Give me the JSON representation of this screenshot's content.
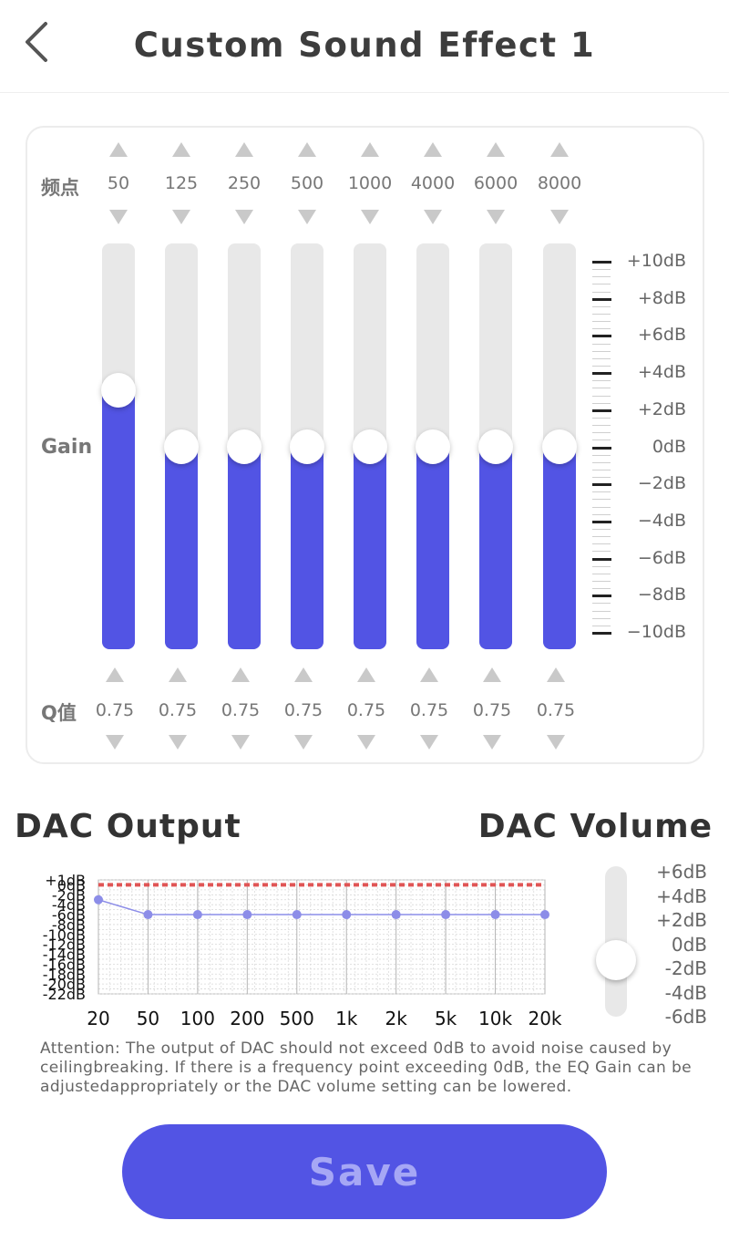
{
  "header": {
    "title": "Custom Sound Effect 1",
    "back_icon": "chevron-left-icon"
  },
  "eq": {
    "freq_label": "频点",
    "gain_label": "Gain",
    "q_label": "Q值",
    "bands": [
      {
        "freq": "50",
        "gain_db": 3,
        "q": "0.75"
      },
      {
        "freq": "125",
        "gain_db": 0,
        "q": "0.75"
      },
      {
        "freq": "250",
        "gain_db": 0,
        "q": "0.75"
      },
      {
        "freq": "500",
        "gain_db": 0,
        "q": "0.75"
      },
      {
        "freq": "1000",
        "gain_db": 0,
        "q": "0.75"
      },
      {
        "freq": "4000",
        "gain_db": 0,
        "q": "0.75"
      },
      {
        "freq": "6000",
        "gain_db": 0,
        "q": "0.75"
      },
      {
        "freq": "8000",
        "gain_db": 0,
        "q": "0.75"
      }
    ],
    "gain_range": [
      -10,
      10
    ],
    "scale_labels": [
      "+10dB",
      "+8dB",
      "+6dB",
      "+4dB",
      "+2dB",
      "0dB",
      "−2dB",
      "−4dB",
      "−6dB",
      "−8dB",
      "−10dB"
    ]
  },
  "dac_output": {
    "title": "DAC Output",
    "chart_data": {
      "type": "line",
      "x": [
        "20",
        "50",
        "100",
        "200",
        "500",
        "1k",
        "2k",
        "5k",
        "10k",
        "20k"
      ],
      "series": [
        {
          "values": [
            -3,
            -6,
            -6,
            -6,
            -6,
            -6,
            -6,
            -6,
            -6,
            -6
          ],
          "color": "#8c8de8"
        }
      ],
      "reference_line": {
        "value": 0,
        "color": "#e05555",
        "style": "dashed"
      },
      "y_tick_labels": [
        "+1dB",
        "0dB",
        "-2dB",
        "-4dB",
        "-6dB",
        "-8dB",
        "-10dB",
        "-12dB",
        "-14dB",
        "-16dB",
        "-18dB",
        "-20dB",
        "-22dB"
      ],
      "ylim": [
        -22,
        1
      ],
      "grid": true
    }
  },
  "dac_volume": {
    "title": "DAC Volume",
    "labels": [
      "+6dB",
      "+4dB",
      "+2dB",
      "0dB",
      "-2dB",
      "-4dB",
      "-6dB"
    ],
    "value_db": 0,
    "range": [
      -6,
      6
    ]
  },
  "attention": "Attention: The output of DAC should not exceed 0dB to avoid noise caused by ceilingbreaking. If there is a frequency point exceeding 0dB, the EQ Gain can be adjustedappropriately or the DAC volume setting can be lowered.",
  "save_label": "Save",
  "colors": {
    "accent": "#5254e4",
    "save_text": "#a6a7f5",
    "track": "#e8e8e8",
    "warning_line": "#e05555"
  }
}
